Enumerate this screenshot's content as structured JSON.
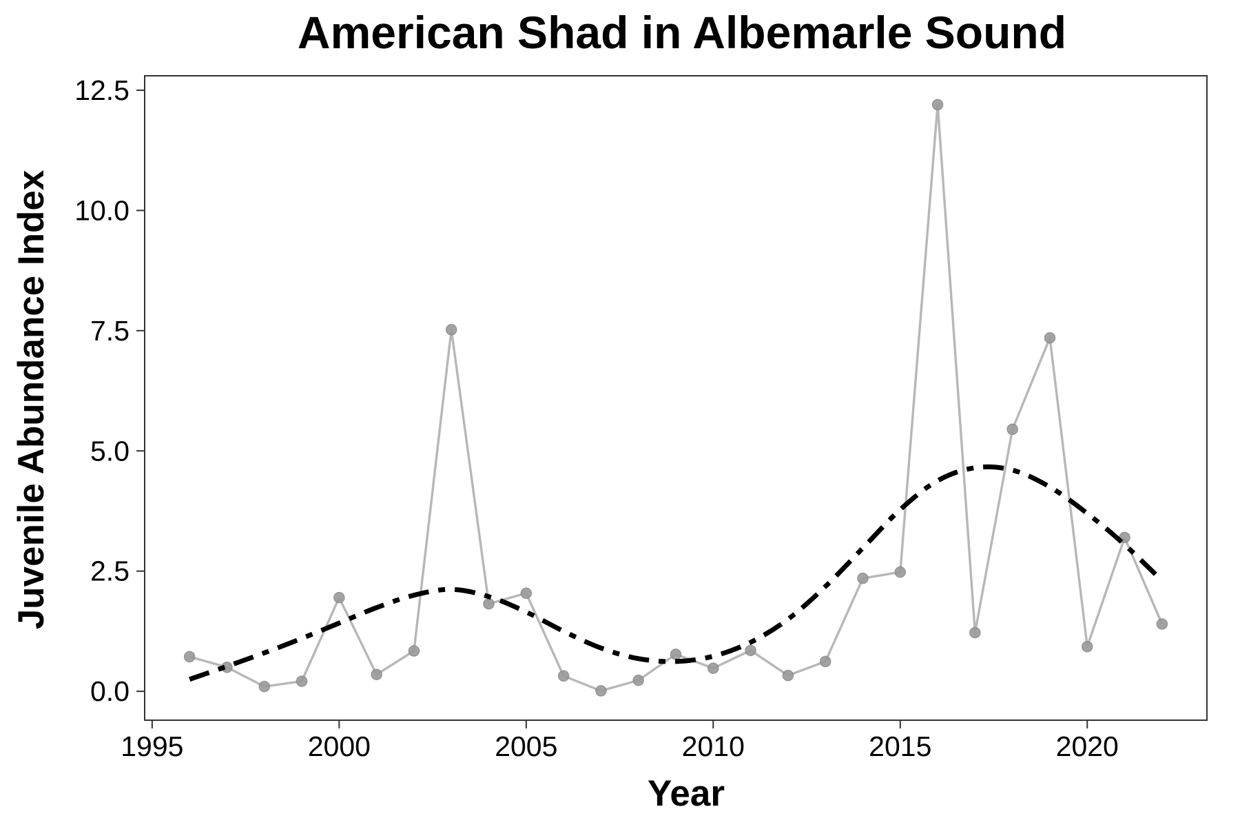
{
  "chart_data": {
    "type": "line",
    "title": "American Shad in Albemarle Sound",
    "xlabel": "Year",
    "ylabel": "Juvenile Abundance Index",
    "xlim": [
      1994.8,
      2023.2
    ],
    "ylim": [
      -0.6,
      12.8
    ],
    "x_ticks": [
      1995,
      2000,
      2005,
      2010,
      2015,
      2020
    ],
    "x_tick_labels": [
      "1995",
      "2000",
      "2005",
      "2010",
      "2015",
      "2020"
    ],
    "y_ticks": [
      0.0,
      2.5,
      5.0,
      7.5,
      10.0,
      12.5
    ],
    "y_tick_labels": [
      "0.0",
      "2.5",
      "5.0",
      "7.5",
      "10.0",
      "12.5"
    ],
    "grid": false,
    "legend": "none",
    "series": [
      {
        "style": "line-with-points",
        "color": "#aaaaaa",
        "x": [
          1996,
          1997,
          1998,
          1999,
          2000,
          2001,
          2002,
          2003,
          2004,
          2005,
          2006,
          2007,
          2008,
          2009,
          2010,
          2011,
          2012,
          2013,
          2014,
          2015,
          2016,
          2017,
          2018,
          2019,
          2020,
          2021,
          2022
        ],
        "y": [
          0.72,
          0.5,
          0.1,
          0.21,
          1.95,
          0.35,
          0.84,
          7.52,
          1.82,
          2.04,
          0.32,
          0.01,
          0.23,
          0.77,
          0.48,
          0.85,
          0.33,
          0.62,
          2.35,
          2.48,
          12.2,
          1.22,
          5.45,
          7.35,
          0.93,
          3.2,
          1.4
        ]
      },
      {
        "style": "dash-dot-trend",
        "color": "#000000",
        "x": [
          1996,
          1997,
          1998,
          1999,
          2000,
          2001,
          2002,
          2003,
          2004,
          2005,
          2006,
          2007,
          2008,
          2009,
          2010,
          2011,
          2012,
          2013,
          2014,
          2015,
          2016,
          2017,
          2018,
          2019,
          2020,
          2021,
          2022
        ],
        "y": [
          0.25,
          0.52,
          0.8,
          1.1,
          1.42,
          1.74,
          2.0,
          2.12,
          1.97,
          1.65,
          1.25,
          0.9,
          0.68,
          0.62,
          0.73,
          1.02,
          1.5,
          2.18,
          2.98,
          3.78,
          4.38,
          4.65,
          4.6,
          4.25,
          3.7,
          3.05,
          2.3
        ]
      }
    ]
  }
}
